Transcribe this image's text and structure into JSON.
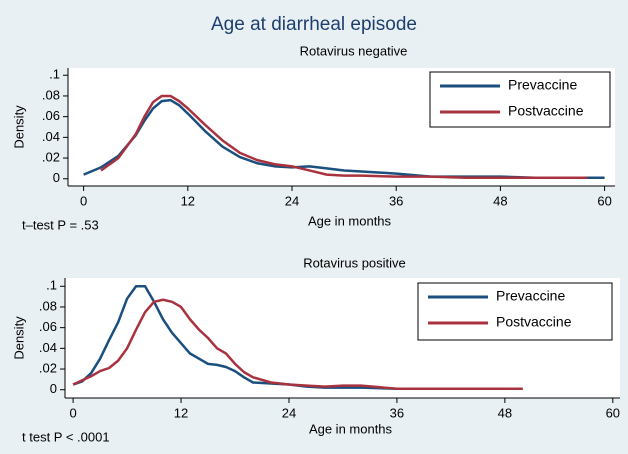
{
  "title": "Age at diarrheal episode",
  "chart_data": [
    {
      "type": "line",
      "subtitle": "Rotavirus negative",
      "xlabel": "Age in months",
      "ylabel": "Density",
      "annotation": "t–test P = .53",
      "legend": "upper right",
      "x": [
        0,
        2,
        4,
        6,
        7,
        8,
        9,
        10,
        11,
        12,
        14,
        16,
        18,
        20,
        22,
        24,
        26,
        28,
        30,
        32,
        36,
        40,
        44,
        48,
        52,
        56,
        58,
        60
      ],
      "series": [
        {
          "name": "Prevaccine",
          "color": "#1b4f7e",
          "values": [
            0.004,
            0.011,
            0.022,
            0.042,
            0.056,
            0.068,
            0.075,
            0.076,
            0.071,
            0.063,
            0.046,
            0.031,
            0.021,
            0.015,
            0.012,
            0.011,
            0.012,
            0.01,
            0.008,
            0.007,
            0.005,
            0.002,
            0.002,
            0.002,
            0.001,
            0.001,
            0.001,
            0.001
          ]
        },
        {
          "name": "Postvaccine",
          "color": "#a8323e",
          "values": [
            null,
            0.008,
            0.02,
            0.043,
            0.06,
            0.074,
            0.08,
            0.08,
            0.075,
            0.068,
            0.052,
            0.037,
            0.025,
            0.018,
            0.014,
            0.012,
            0.008,
            0.004,
            0.003,
            0.003,
            0.002,
            0.002,
            0.001,
            0.001,
            0.001,
            0.001,
            0.001,
            null
          ]
        }
      ],
      "xlim": [
        -1.8,
        61.2
      ],
      "xticks": [
        0,
        12,
        24,
        36,
        48,
        60
      ],
      "ylim": [
        -0.007,
        0.107
      ],
      "yticks": [
        0,
        {
          "value": 0.02,
          "label": ".02"
        },
        {
          "value": 0.04,
          "label": ".04"
        },
        {
          "value": 0.06,
          "label": ".06"
        },
        {
          "value": 0.08,
          "label": ".08"
        },
        {
          "value": 0.1,
          "label": ".1"
        }
      ]
    },
    {
      "type": "line",
      "subtitle": "Rotavirus positive",
      "xlabel": "Age in months",
      "ylabel": "Density",
      "annotation": "t test P < .0001",
      "legend": "upper right",
      "x": [
        0,
        1,
        2,
        3,
        4,
        5,
        6,
        7,
        8,
        9,
        10,
        11,
        12,
        13,
        14,
        15,
        16,
        17,
        18,
        19,
        20,
        22,
        24,
        26,
        28,
        30,
        32,
        36,
        40,
        43,
        46,
        50
      ],
      "series": [
        {
          "name": "Prevaccine",
          "color": "#1b4f7e",
          "values": [
            0.005,
            0.008,
            0.016,
            0.03,
            0.048,
            0.065,
            0.088,
            0.1,
            0.1,
            0.085,
            0.068,
            0.055,
            0.045,
            0.035,
            0.03,
            0.025,
            0.024,
            0.022,
            0.018,
            0.012,
            0.007,
            0.006,
            0.005,
            0.003,
            0.002,
            0.002,
            0.002,
            0.001,
            0.001,
            0.001,
            null,
            null
          ]
        },
        {
          "name": "Postvaccine",
          "color": "#a8323e",
          "values": [
            0.005,
            0.009,
            0.013,
            0.018,
            0.021,
            0.028,
            0.04,
            0.058,
            0.075,
            0.085,
            0.087,
            0.085,
            0.08,
            0.068,
            0.058,
            0.05,
            0.04,
            0.035,
            0.025,
            0.017,
            0.012,
            0.007,
            0.005,
            0.004,
            0.003,
            0.004,
            0.004,
            0.001,
            0.001,
            0.001,
            0.001,
            0.001
          ]
        }
      ],
      "xlim": [
        -0.9,
        60.8
      ],
      "xticks": [
        0,
        12,
        24,
        36,
        48,
        60
      ],
      "ylim": [
        -0.008,
        0.108
      ],
      "yticks": [
        0,
        {
          "value": 0.02,
          "label": ".02"
        },
        {
          "value": 0.04,
          "label": ".04"
        },
        {
          "value": 0.06,
          "label": ".06"
        },
        {
          "value": 0.08,
          "label": ".08"
        },
        {
          "value": 0.1,
          "label": ".1"
        }
      ]
    }
  ]
}
